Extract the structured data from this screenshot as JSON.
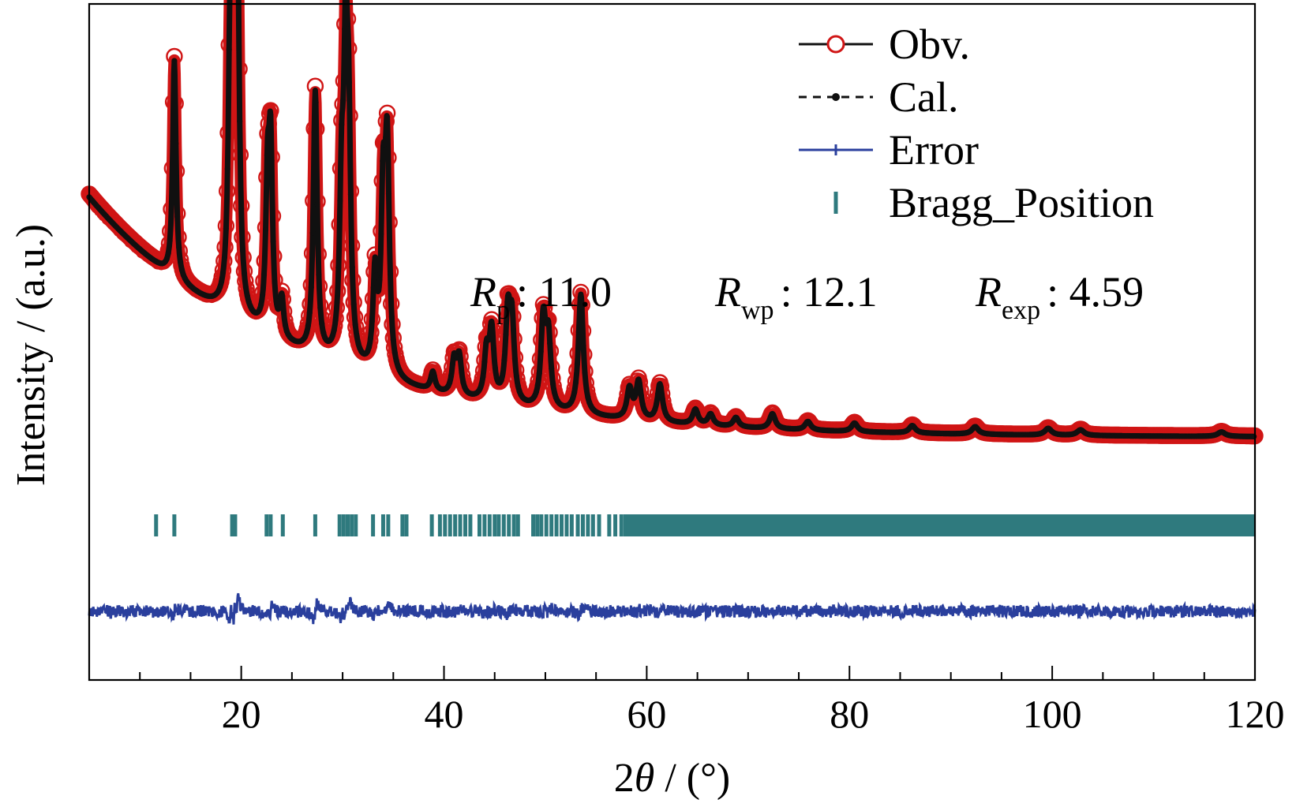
{
  "chart_data": {
    "type": "scatter",
    "title": "",
    "xlabel": "2θ / (°)",
    "ylabel": "Intensity / (a.u.)",
    "xlim": [
      5,
      120
    ],
    "xticks": [
      20,
      40,
      60,
      80,
      100,
      120
    ],
    "xticklabels": [
      "20",
      "40",
      "60",
      "80",
      "100",
      "120"
    ],
    "x_minor_step": 5,
    "y_ticks": "none",
    "grid": false,
    "legend": {
      "position": "top-right"
    },
    "peaks": [
      {
        "x": 13.4,
        "h": 58
      },
      {
        "x": 18.9,
        "h": 62
      },
      {
        "x": 19.3,
        "h": 100
      },
      {
        "x": 19.6,
        "h": 92
      },
      {
        "x": 22.6,
        "h": 36
      },
      {
        "x": 22.9,
        "h": 46
      },
      {
        "x": 24.0,
        "h": 10
      },
      {
        "x": 27.3,
        "h": 70
      },
      {
        "x": 29.9,
        "h": 40
      },
      {
        "x": 30.3,
        "h": 72
      },
      {
        "x": 30.6,
        "h": 52
      },
      {
        "x": 33.2,
        "h": 25
      },
      {
        "x": 34.0,
        "h": 44
      },
      {
        "x": 34.4,
        "h": 57
      },
      {
        "x": 38.9,
        "h": 5
      },
      {
        "x": 41.0,
        "h": 9
      },
      {
        "x": 41.5,
        "h": 10
      },
      {
        "x": 44.2,
        "h": 12
      },
      {
        "x": 44.7,
        "h": 18
      },
      {
        "x": 46.3,
        "h": 22
      },
      {
        "x": 46.7,
        "h": 20
      },
      {
        "x": 49.8,
        "h": 23
      },
      {
        "x": 50.3,
        "h": 18
      },
      {
        "x": 53.5,
        "h": 32
      },
      {
        "x": 58.3,
        "h": 8
      },
      {
        "x": 59.2,
        "h": 10
      },
      {
        "x": 61.3,
        "h": 10
      },
      {
        "x": 64.8,
        "h": 4
      },
      {
        "x": 66.3,
        "h": 3
      },
      {
        "x": 68.8,
        "h": 2.5
      },
      {
        "x": 72.4,
        "h": 4
      },
      {
        "x": 75.9,
        "h": 2.3
      },
      {
        "x": 80.5,
        "h": 2.3
      },
      {
        "x": 86.2,
        "h": 2
      },
      {
        "x": 92.4,
        "h": 2
      },
      {
        "x": 99.6,
        "h": 1.8
      },
      {
        "x": 102.8,
        "h": 1.5
      },
      {
        "x": 116.7,
        "h": 1.2
      }
    ],
    "series": [
      {
        "name": "Obv.",
        "marker": "open-circle",
        "line": "solid",
        "color": "#d01515"
      },
      {
        "name": "Cal.",
        "marker": "dot",
        "line": "dashed",
        "color": "#101010"
      },
      {
        "name": "Error",
        "marker": "plus",
        "line": "solid",
        "color": "#2a3f9d"
      },
      {
        "name": "Bragg_Position",
        "marker": "vertical-tick",
        "line": "none",
        "color": "#2f7a7e"
      }
    ],
    "bragg_positions": [
      11.6,
      13.4,
      19.1,
      19.4,
      22.5,
      22.9,
      24.1,
      27.3,
      29.7,
      30.1,
      30.5,
      30.9,
      31.3,
      33.0,
      34.0,
      34.5,
      35.9,
      36.3,
      38.8,
      39.6,
      40.1,
      40.6,
      41.1,
      41.6,
      42.1,
      42.6,
      43.5,
      44.0,
      44.5,
      45.0,
      45.4,
      45.9,
      46.4,
      46.9,
      47.3,
      48.8,
      49.2,
      49.6,
      50.1,
      50.6,
      51.1,
      51.6,
      52.1,
      52.6,
      53.2,
      53.7,
      54.2,
      54.7,
      55.3,
      56.3,
      56.9,
      57.5,
      57.9
    ],
    "bragg_dense_from": 58,
    "annotations": [
      {
        "symbol": "R",
        "sub": "p",
        "text": ": 11.0"
      },
      {
        "symbol": "R",
        "sub": "wp",
        "text": ": 12.1"
      },
      {
        "symbol": "R",
        "sub": "exp",
        "text": ": 4.59"
      }
    ]
  }
}
